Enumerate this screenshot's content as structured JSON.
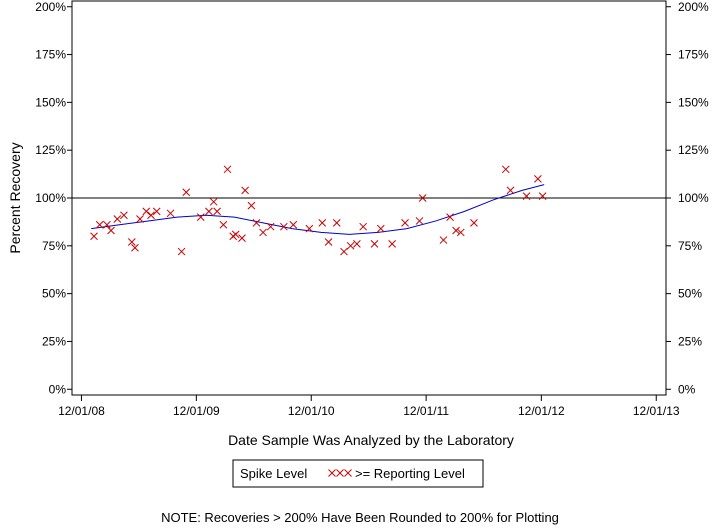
{
  "chart_data": {
    "type": "scatter",
    "title": "",
    "xlabel": "Date Sample Was Analyzed by the Laboratory",
    "ylabel": "Percent Recovery",
    "x_ticks": [
      "12/01/08",
      "12/01/09",
      "12/01/10",
      "12/01/11",
      "12/01/12",
      "12/01/13"
    ],
    "y_ticks": [
      "0%",
      "25%",
      "50%",
      "75%",
      "100%",
      "125%",
      "150%",
      "175%",
      "200%"
    ],
    "xlim": [
      "2008-11-01",
      "2014-01-01"
    ],
    "ylim": [
      -3,
      203
    ],
    "reference_line": 100,
    "grid": false,
    "legend_position": "bottom-center",
    "legend_title": "Spike Level",
    "series": [
      {
        "name": ">= Reporting Level",
        "marker": "x",
        "color": "#cc0000",
        "x": [
          "2009-01-10",
          "2009-01-28",
          "2009-02-20",
          "2009-03-05",
          "2009-03-25",
          "2009-04-15",
          "2009-05-10",
          "2009-05-20",
          "2009-06-05",
          "2009-06-25",
          "2009-07-10",
          "2009-07-28",
          "2009-09-10",
          "2009-10-15",
          "2009-10-30",
          "2009-12-15",
          "2010-01-10",
          "2010-01-25",
          "2010-02-05",
          "2010-02-25",
          "2010-03-10",
          "2010-03-28",
          "2010-04-05",
          "2010-04-25",
          "2010-05-05",
          "2010-05-25",
          "2010-06-10",
          "2010-07-01",
          "2010-07-25",
          "2010-09-05",
          "2010-10-05",
          "2010-11-25",
          "2011-01-05",
          "2011-01-25",
          "2011-02-20",
          "2011-03-15",
          "2011-04-05",
          "2011-04-25",
          "2011-05-15",
          "2011-06-20",
          "2011-07-10",
          "2011-08-15",
          "2011-09-25",
          "2011-11-10",
          "2011-11-20",
          "2012-01-25",
          "2012-02-15",
          "2012-03-05",
          "2012-03-20",
          "2012-05-01",
          "2012-08-10",
          "2012-08-25",
          "2012-10-15",
          "2012-11-20",
          "2012-12-05"
        ],
        "y": [
          80,
          86,
          86,
          83,
          89,
          91,
          77,
          74,
          89,
          93,
          91,
          93,
          92,
          72,
          103,
          90,
          93,
          98,
          93,
          86,
          115,
          80,
          81,
          79,
          104,
          96,
          87,
          82,
          85,
          85,
          86,
          84,
          87,
          77,
          87,
          72,
          75,
          76,
          85,
          76,
          84,
          76,
          87,
          88,
          100,
          78,
          90,
          83,
          82,
          87,
          115,
          104,
          101,
          110,
          101
        ]
      }
    ],
    "trend_line": {
      "color": "#0000cc",
      "x": [
        "2009-01-01",
        "2009-04-01",
        "2009-07-01",
        "2009-10-01",
        "2010-01-01",
        "2010-04-01",
        "2010-07-01",
        "2010-10-01",
        "2011-01-01",
        "2011-04-01",
        "2011-07-01",
        "2011-10-01",
        "2012-01-01",
        "2012-04-01",
        "2012-07-01",
        "2012-10-01",
        "2012-12-10"
      ],
      "y": [
        84,
        86,
        88,
        90,
        91,
        90,
        87,
        84,
        82,
        81,
        82,
        84,
        88,
        93,
        99,
        104,
        107
      ]
    },
    "note": "NOTE: Recoveries > 200% Have Been Rounded to 200% for Plotting"
  }
}
